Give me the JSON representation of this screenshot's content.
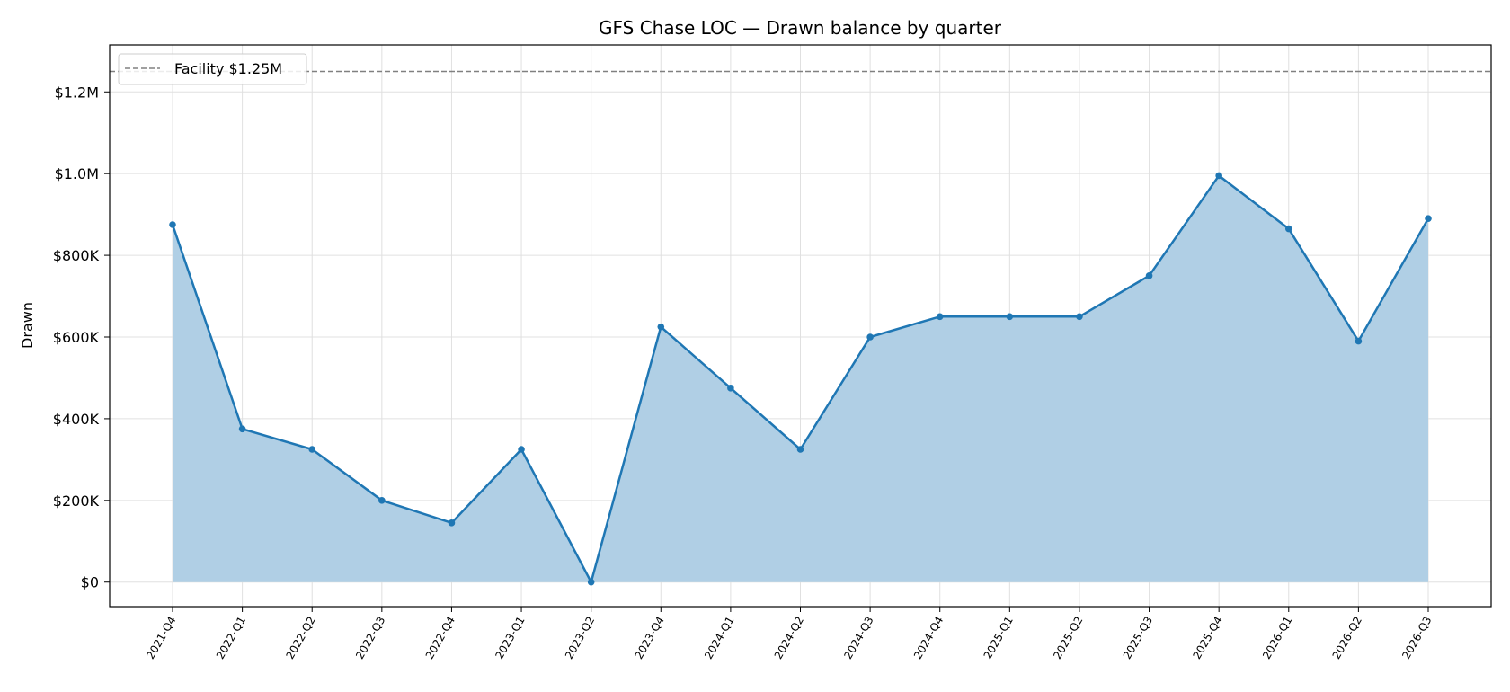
{
  "chart_data": {
    "type": "area",
    "title": "GFS Chase LOC — Drawn balance by quarter",
    "xlabel": "",
    "ylabel": "Drawn",
    "categories": [
      "2021-Q4",
      "2022-Q1",
      "2022-Q2",
      "2022-Q3",
      "2022-Q4",
      "2023-Q1",
      "2023-Q2",
      "2023-Q4",
      "2024-Q1",
      "2024-Q2",
      "2024-Q3",
      "2024-Q4",
      "2025-Q1",
      "2025-Q2",
      "2025-Q3",
      "2025-Q4",
      "2026-Q1",
      "2026-Q2",
      "2026-Q3"
    ],
    "series": [
      {
        "values": [
          875000,
          375000,
          325000,
          200000,
          145000,
          325000,
          0,
          625000,
          475000,
          325000,
          600000,
          650000,
          650000,
          650000,
          750000,
          995000,
          865000,
          590000,
          890000
        ],
        "color": "#1f77b4",
        "fill_color": "#b0cfe5"
      }
    ],
    "reference_line": {
      "label": "Facility $1.25M",
      "value": 1250000,
      "color": "#808080",
      "style": "dashed"
    },
    "ylim": [
      -60000,
      1315000
    ],
    "yticks": [
      0,
      200000,
      400000,
      600000,
      800000,
      1000000,
      1200000
    ],
    "ytick_labels": [
      "$0",
      "$200K",
      "$400K",
      "$600K",
      "$800K",
      "$1.0M",
      "$1.2M"
    ],
    "grid": true,
    "legend_position": "top-left"
  }
}
